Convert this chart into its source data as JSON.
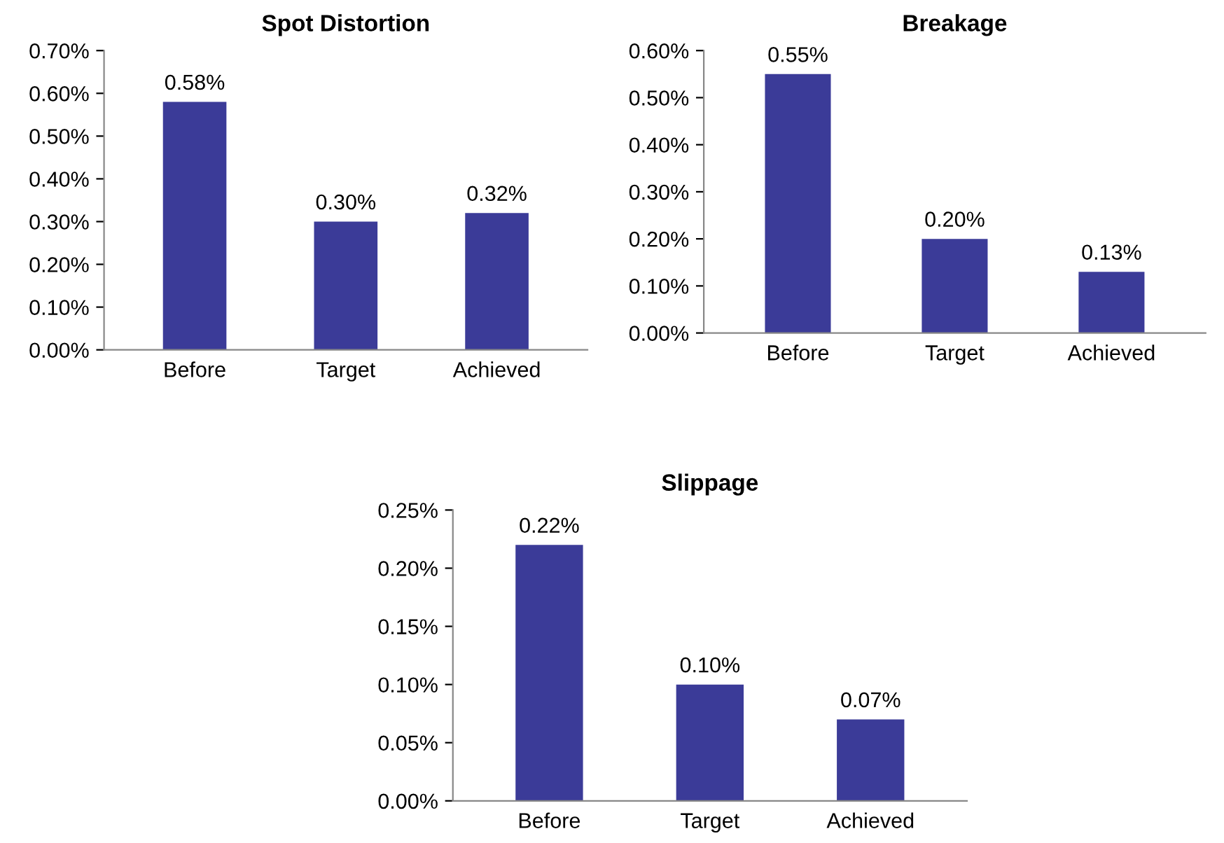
{
  "chart_data": [
    {
      "type": "bar",
      "title": "Spot Distortion",
      "categories": [
        "Before",
        "Target",
        "Achieved"
      ],
      "values": [
        0.58,
        0.3,
        0.32
      ],
      "color": "#3b3b98",
      "value_labels": [
        "0.58%",
        "0.30%",
        "0.32%"
      ],
      "ylim": [
        0,
        0.7
      ],
      "yticks": [
        {
          "value": 0,
          "label": "0.00%"
        },
        {
          "value": 0.1,
          "label": "0.10%"
        },
        {
          "value": 0.2,
          "label": "0.20%"
        },
        {
          "value": 0.3,
          "label": "0.30%"
        },
        {
          "value": 0.4,
          "label": "0.40%"
        },
        {
          "value": 0.5,
          "label": "0.50%"
        },
        {
          "value": 0.6,
          "label": "0.60%"
        },
        {
          "value": 0.7,
          "label": "0.70%"
        }
      ]
    },
    {
      "type": "bar",
      "title": "Breakage",
      "categories": [
        "Before",
        "Target",
        "Achieved"
      ],
      "values": [
        0.55,
        0.2,
        0.13
      ],
      "color": "#3b3b98",
      "value_labels": [
        "0.55%",
        "0.20%",
        "0.13%"
      ],
      "ylim": [
        0,
        0.6
      ],
      "yticks": [
        {
          "value": 0,
          "label": "0.00%"
        },
        {
          "value": 0.1,
          "label": "0.10%"
        },
        {
          "value": 0.2,
          "label": "0.20%"
        },
        {
          "value": 0.3,
          "label": "0.30%"
        },
        {
          "value": 0.4,
          "label": "0.40%"
        },
        {
          "value": 0.5,
          "label": "0.50%"
        },
        {
          "value": 0.6,
          "label": "0.60%"
        }
      ]
    },
    {
      "type": "bar",
      "title": "Slippage",
      "categories": [
        "Before",
        "Target",
        "Achieved"
      ],
      "values": [
        0.22,
        0.1,
        0.07
      ],
      "color": "#3b3b98",
      "value_labels": [
        "0.22%",
        "0.10%",
        "0.07%"
      ],
      "ylim": [
        0,
        0.25
      ],
      "yticks": [
        {
          "value": 0,
          "label": "0.00%"
        },
        {
          "value": 0.05,
          "label": "0.05%"
        },
        {
          "value": 0.1,
          "label": "0.10%"
        },
        {
          "value": 0.15,
          "label": "0.15%"
        },
        {
          "value": 0.2,
          "label": "0.20%"
        },
        {
          "value": 0.25,
          "label": "0.25%"
        }
      ]
    }
  ]
}
